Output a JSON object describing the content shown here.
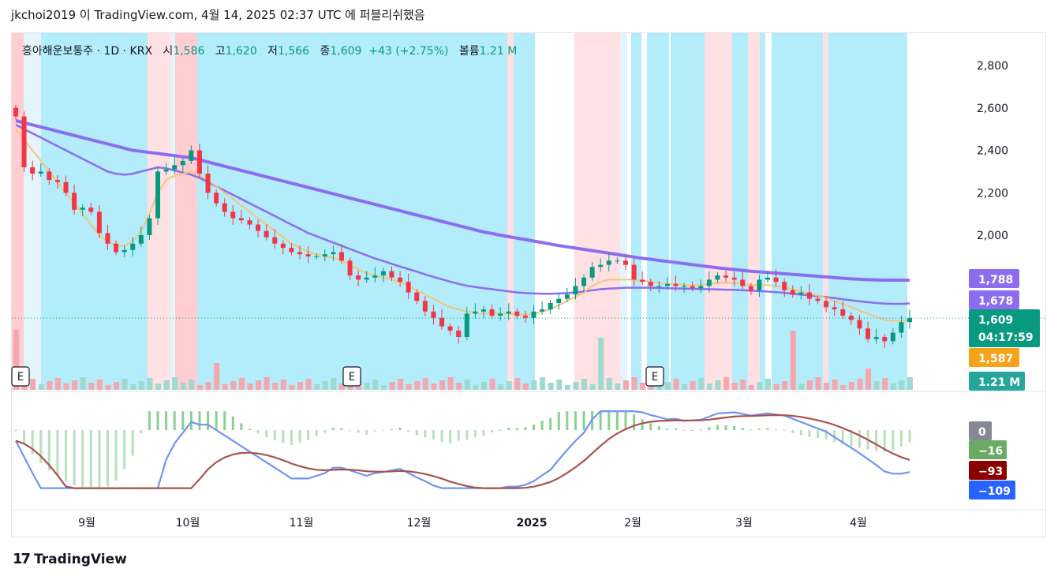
{
  "header": {
    "title": "jkchoi2019 이 TradingView.com, 4월 14, 2025 02:37 UTC 에 퍼블리쉬했음"
  },
  "legend": {
    "symbol": "흥아해운보통주 · 1D · KRX",
    "open_label": "시",
    "open": "1,586",
    "high_label": "고",
    "high": "1,620",
    "low_label": "저",
    "low": "1,566",
    "close_label": "종",
    "close": "1,609",
    "change": "+43 (+2.75%)",
    "volume_label": "볼륨",
    "volume": "1.21 M"
  },
  "footer": {
    "brand": "TradingView"
  },
  "chart_data": {
    "type": "candlestick",
    "y_axis_ticks": [
      "2,800",
      "2,600",
      "2,400",
      "2,200",
      "2,000"
    ],
    "y_ticks_values": [
      2800,
      2600,
      2400,
      2200,
      2000
    ],
    "x_axis_ticks": [
      "9월",
      "10월",
      "11월",
      "12월",
      "2025",
      "2월",
      "3월",
      "4월"
    ],
    "price_badges": [
      {
        "label": "1,788",
        "value": 1788,
        "color": "#8c6df0"
      },
      {
        "label": "1,678",
        "value": 1678,
        "color": "#8c6df0"
      },
      {
        "label": "1,609",
        "sub": "04:17:59",
        "value": 1609,
        "color": "#089981"
      },
      {
        "label": "1,587",
        "value": 1587,
        "color": "#f7a21b"
      },
      {
        "label": "1.21 M",
        "color": "#26a69a"
      }
    ],
    "macd_badges": [
      {
        "label": "0",
        "color": "#868993"
      },
      {
        "label": "−16",
        "color": "#6aaa64"
      },
      {
        "label": "−93",
        "color": "#8b0000"
      },
      {
        "label": "−109",
        "color": "#2962ff"
      }
    ],
    "earnings_markers": [
      "E",
      "E",
      "E"
    ],
    "closes": [
      2560,
      2320,
      2290,
      2300,
      2260,
      2250,
      2200,
      2120,
      2130,
      2110,
      2010,
      1960,
      1920,
      1930,
      1960,
      2000,
      2080,
      2300,
      2310,
      2330,
      2350,
      2400,
      2290,
      2200,
      2150,
      2110,
      2080,
      2070,
      2050,
      2020,
      1990,
      1960,
      1940,
      1920,
      1910,
      1900,
      1900,
      1910,
      1920,
      1880,
      1810,
      1790,
      1800,
      1810,
      1830,
      1800,
      1780,
      1730,
      1690,
      1640,
      1610,
      1570,
      1550,
      1520,
      1630,
      1640,
      1650,
      1620,
      1630,
      1640,
      1620,
      1610,
      1640,
      1650,
      1680,
      1700,
      1720,
      1760,
      1800,
      1850,
      1860,
      1880,
      1880,
      1860,
      1790,
      1780,
      1760,
      1760,
      1770,
      1760,
      1760,
      1750,
      1760,
      1790,
      1810,
      1800,
      1790,
      1760,
      1740,
      1790,
      1800,
      1780,
      1740,
      1720,
      1730,
      1700,
      1690,
      1660,
      1650,
      1620,
      1600,
      1560,
      1510,
      1520,
      1500,
      1540,
      1590,
      1609
    ],
    "ema_short": [
      2500,
      2450,
      2400,
      2350,
      2300,
      2250,
      2200,
      2150,
      2100,
      2050,
      2000,
      1970,
      1950,
      1950,
      1970,
      2020,
      2100,
      2200,
      2260,
      2280,
      2290,
      2300,
      2280,
      2260,
      2230,
      2200,
      2170,
      2140,
      2110,
      2080,
      2050,
      2020,
      1990,
      1960,
      1940,
      1920,
      1910,
      1900,
      1895,
      1880,
      1860,
      1840,
      1820,
      1810,
      1800,
      1790,
      1780,
      1760,
      1740,
      1720,
      1700,
      1680,
      1660,
      1650,
      1640,
      1635,
      1630,
      1630,
      1630,
      1630,
      1625,
      1625,
      1630,
      1640,
      1650,
      1670,
      1690,
      1710,
      1730,
      1760,
      1780,
      1790,
      1790,
      1790,
      1790,
      1785,
      1780,
      1775,
      1770,
      1770,
      1765,
      1765,
      1765,
      1770,
      1775,
      1775,
      1775,
      1770,
      1765,
      1765,
      1765,
      1760,
      1755,
      1745,
      1735,
      1725,
      1715,
      1705,
      1690,
      1675,
      1660,
      1645,
      1630,
      1615,
      1600,
      1595,
      1595,
      1600
    ],
    "ema_mid": [
      2520,
      2500,
      2480,
      2460,
      2440,
      2420,
      2400,
      2380,
      2360,
      2340,
      2320,
      2300,
      2290,
      2285,
      2290,
      2300,
      2310,
      2320,
      2315,
      2305,
      2295,
      2285,
      2270,
      2250,
      2230,
      2210,
      2190,
      2170,
      2150,
      2130,
      2110,
      2090,
      2070,
      2050,
      2030,
      2010,
      1995,
      1980,
      1965,
      1950,
      1935,
      1920,
      1905,
      1890,
      1878,
      1865,
      1852,
      1840,
      1828,
      1815,
      1803,
      1792,
      1781,
      1770,
      1762,
      1755,
      1750,
      1745,
      1740,
      1735,
      1730,
      1727,
      1725,
      1724,
      1724,
      1725,
      1727,
      1730,
      1735,
      1740,
      1745,
      1748,
      1750,
      1752,
      1752,
      1752,
      1752,
      1751,
      1750,
      1749,
      1748,
      1747,
      1746,
      1745,
      1744,
      1743,
      1742,
      1740,
      1738,
      1736,
      1734,
      1731,
      1728,
      1724,
      1720,
      1716,
      1712,
      1708,
      1703,
      1698,
      1693,
      1688,
      1684,
      1680,
      1677,
      1676,
      1676,
      1678
    ],
    "ema_long": [
      2540,
      2530,
      2520,
      2510,
      2500,
      2490,
      2480,
      2470,
      2460,
      2450,
      2440,
      2430,
      2420,
      2410,
      2400,
      2395,
      2390,
      2385,
      2380,
      2375,
      2370,
      2365,
      2355,
      2345,
      2335,
      2325,
      2315,
      2305,
      2295,
      2285,
      2275,
      2265,
      2255,
      2245,
      2235,
      2225,
      2215,
      2205,
      2195,
      2185,
      2175,
      2165,
      2155,
      2145,
      2135,
      2125,
      2115,
      2105,
      2095,
      2085,
      2075,
      2065,
      2055,
      2045,
      2035,
      2025,
      2015,
      2008,
      2000,
      1993,
      1986,
      1979,
      1972,
      1965,
      1958,
      1951,
      1945,
      1939,
      1933,
      1927,
      1921,
      1915,
      1909,
      1903,
      1897,
      1891,
      1886,
      1881,
      1876,
      1871,
      1866,
      1861,
      1856,
      1851,
      1846,
      1842,
      1838,
      1834,
      1830,
      1827,
      1824,
      1821,
      1818,
      1815,
      1812,
      1809,
      1806,
      1803,
      1800,
      1797,
      1794,
      1792,
      1790,
      1789,
      1788,
      1788,
      1788,
      1788
    ]
  }
}
